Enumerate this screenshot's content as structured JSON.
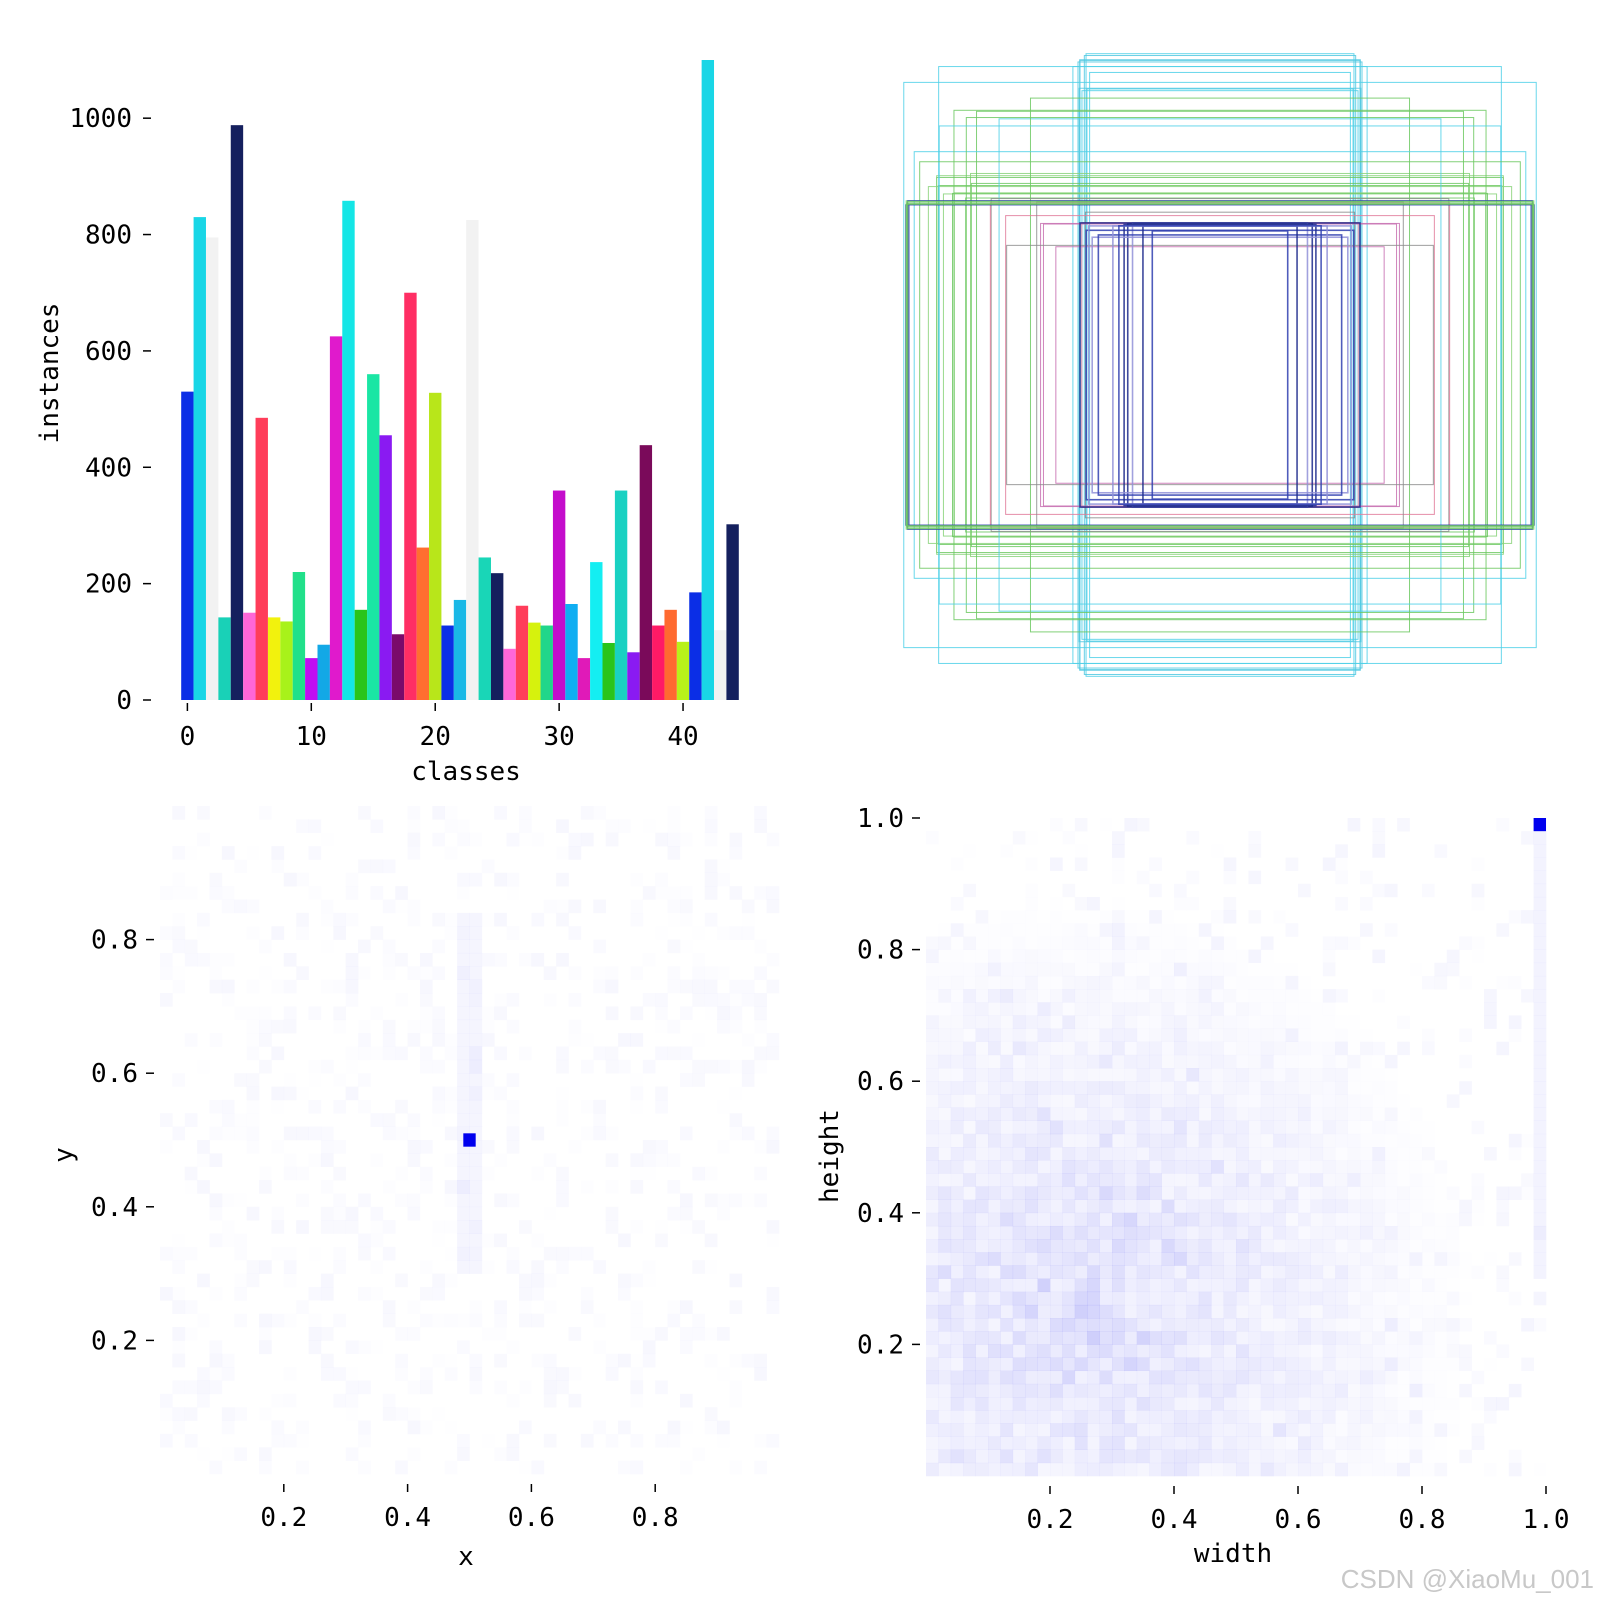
{
  "chart_data": [
    {
      "type": "bar",
      "xlabel": "classes",
      "ylabel": "instances",
      "xlim": [
        -1,
        45
      ],
      "ylim": [
        0,
        1100
      ],
      "xticks": [
        0,
        10,
        20,
        30,
        40
      ],
      "xtick_labels": [
        "0",
        "10",
        "20",
        "30",
        "40"
      ],
      "yticks": [
        0,
        200,
        400,
        600,
        800,
        1000
      ],
      "ytick_labels": [
        "0",
        "200",
        "400",
        "600",
        "800",
        "1000"
      ],
      "categories": [
        0,
        1,
        2,
        3,
        4,
        5,
        6,
        7,
        8,
        9,
        10,
        11,
        12,
        13,
        14,
        15,
        16,
        17,
        18,
        19,
        20,
        21,
        22,
        23,
        24,
        25,
        26,
        27,
        28,
        29,
        30,
        31,
        32,
        33,
        34,
        35,
        36,
        37,
        38,
        39,
        40,
        41,
        42,
        43,
        44
      ],
      "values": [
        530,
        830,
        795,
        142,
        988,
        150,
        485,
        142,
        135,
        220,
        72,
        95,
        625,
        858,
        155,
        560,
        455,
        113,
        700,
        262,
        528,
        128,
        172,
        825,
        245,
        218,
        88,
        162,
        133,
        128,
        360,
        165,
        72,
        237,
        98,
        360,
        82,
        438,
        128,
        155,
        100,
        185,
        1100,
        120,
        302
      ],
      "colors": [
        "#0b2ee6",
        "#19d6e6",
        "#f2f2f2",
        "#19d1b7",
        "#15205e",
        "#ff66d8",
        "#ff3d5a",
        "#f2f20d",
        "#a8f21a",
        "#21e08a",
        "#bf0df2",
        "#13a8e6",
        "#e01acc",
        "#14e6e6",
        "#2ac41a",
        "#1ae6a4",
        "#8a1af2",
        "#7a0a6b",
        "#ff2e64",
        "#ff6e30",
        "#b8e61a",
        "#0b2ee6",
        "#1ab8e6",
        "#f2f2f2",
        "#19d6b7",
        "#15205e",
        "#ff66d8",
        "#ff3d5a",
        "#d6f20d",
        "#21d68a",
        "#c40dcc",
        "#0faef2",
        "#e01ab8",
        "#14eef2",
        "#2ac41a",
        "#19d1c2",
        "#8a1af2",
        "#7a0a5a",
        "#ff1a66",
        "#ff6a30",
        "#b8f21a",
        "#0b2ee6",
        "#19d6e6",
        "#f2f2f2",
        "#15205e"
      ]
    },
    {
      "type": "boxes-overlay",
      "description_free": true,
      "box_count": 60
    },
    {
      "type": "heatmap",
      "xlabel": "x",
      "ylabel": "y",
      "xlim": [
        0,
        1
      ],
      "ylim": [
        0,
        1
      ],
      "xticks": [
        0.2,
        0.4,
        0.6,
        0.8
      ],
      "xtick_labels": [
        "0.2",
        "0.4",
        "0.6",
        "0.8"
      ],
      "yticks": [
        0.2,
        0.4,
        0.6,
        0.8
      ],
      "ytick_labels": [
        "0.2",
        "0.4",
        "0.6",
        "0.8"
      ],
      "peak": {
        "x": 0.5,
        "y": 0.5,
        "color": "#0000ee"
      }
    },
    {
      "type": "heatmap",
      "xlabel": "width",
      "ylabel": "height",
      "xlim": [
        0,
        1
      ],
      "ylim": [
        0,
        1
      ],
      "xticks": [
        0.2,
        0.4,
        0.6,
        0.8,
        1.0
      ],
      "xtick_labels": [
        "0.2",
        "0.4",
        "0.6",
        "0.8",
        "1.0"
      ],
      "yticks": [
        0.2,
        0.4,
        0.6,
        0.8,
        1.0
      ],
      "ytick_labels": [
        "0.2",
        "0.4",
        "0.6",
        "0.8",
        "1.0"
      ],
      "peak": {
        "x": 1.0,
        "y": 1.0,
        "color": "#0000ee"
      }
    }
  ],
  "watermark": "CSDN @XiaoMu_001"
}
